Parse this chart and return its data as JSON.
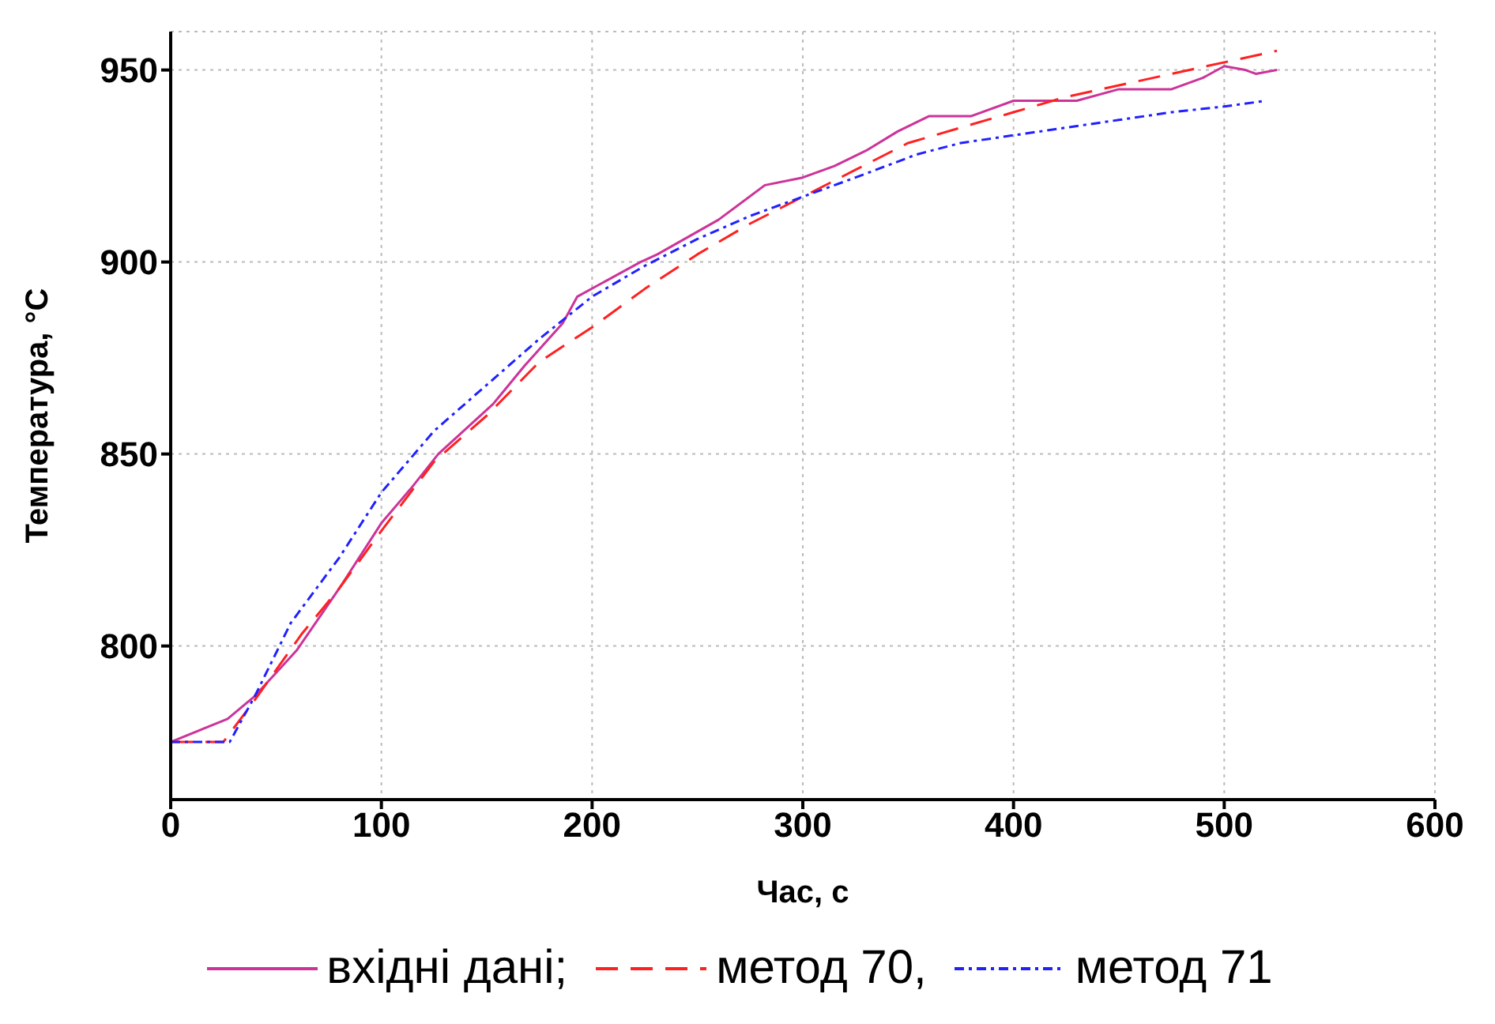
{
  "chart_data": {
    "type": "line",
    "xlabel": "Час, с",
    "ylabel": "Температура, °C",
    "xlim": [
      0,
      600
    ],
    "xticks": [
      0,
      100,
      200,
      300,
      400,
      500,
      600
    ],
    "ylim": [
      760,
      960
    ],
    "yticks": [
      800,
      850,
      900,
      950
    ],
    "grid": true,
    "legend": "bottom",
    "marker": "none",
    "series": [
      {
        "name": "вхідні дані;",
        "color": "#cc3399",
        "line_style": "solid",
        "x": [
          0,
          27,
          40,
          60,
          80,
          100,
          114,
          127,
          153,
          168,
          186,
          193,
          203,
          223,
          231,
          260,
          282,
          300,
          315,
          330,
          345,
          360,
          380,
          400,
          420,
          430,
          450,
          475,
          490,
          500,
          510,
          515,
          525
        ],
        "values": [
          775,
          781,
          787,
          799,
          815,
          832,
          841,
          850,
          863,
          873,
          884,
          891,
          894,
          900,
          902,
          911,
          920,
          922,
          925,
          929,
          934,
          938,
          938,
          942,
          942,
          942,
          945,
          945,
          948,
          951,
          950,
          949,
          950
        ]
      },
      {
        "name": "метод 70,",
        "color": "#ff2020",
        "line_style": "dashed",
        "x": [
          0,
          25,
          40,
          62,
          80,
          100,
          125,
          150,
          175,
          200,
          225,
          250,
          275,
          300,
          325,
          350,
          375,
          400,
          425,
          450,
          475,
          500,
          525
        ],
        "values": [
          775,
          775,
          786,
          803,
          815,
          830,
          848,
          860,
          874,
          883,
          893,
          902,
          910,
          917,
          924,
          931,
          935,
          939,
          943,
          946,
          949,
          952,
          955
        ]
      },
      {
        "name": "метод 71",
        "color": "#2020ff",
        "line_style": "dashdot",
        "x": [
          0,
          28,
          40,
          57,
          80,
          100,
          125,
          150,
          175,
          200,
          225,
          250,
          275,
          300,
          325,
          354,
          375,
          400,
          425,
          450,
          475,
          500,
          520
        ],
        "values": [
          775,
          775,
          787,
          806,
          823,
          840,
          856,
          868,
          880,
          891,
          899,
          906,
          912,
          917,
          922,
          928,
          931,
          933,
          935,
          937,
          939,
          940.5,
          942
        ]
      }
    ]
  }
}
